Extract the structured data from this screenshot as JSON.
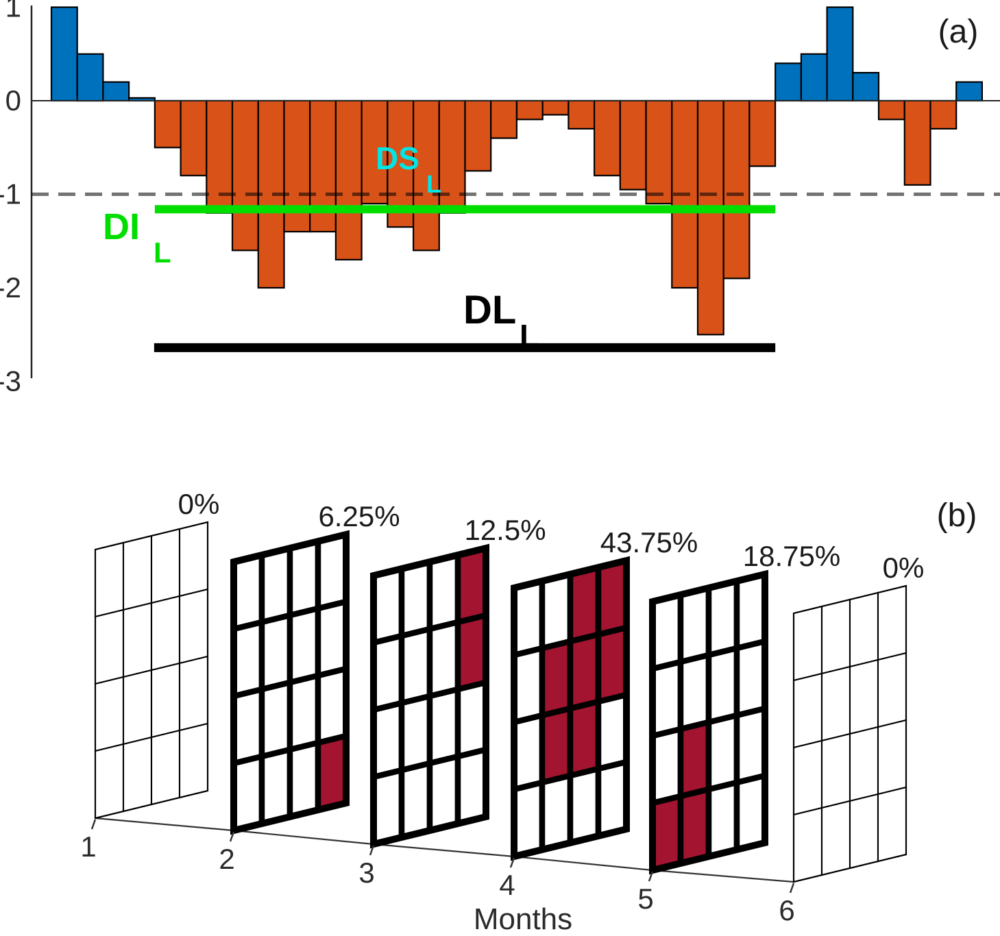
{
  "panel_a": {
    "tag": "(a)",
    "y_tick_labels": [
      "1",
      "0",
      "-1",
      "-2",
      "-3"
    ],
    "labels": {
      "ds": {
        "text": "DS",
        "sub": "L",
        "color": "#00E5E5"
      },
      "di": {
        "text": "DI",
        "sub": "L",
        "color": "#00DE00"
      },
      "dl": {
        "text": "DL",
        "sub": "L",
        "color": "#000000"
      }
    }
  },
  "panel_b": {
    "tag": "(b)",
    "xlabel": "Months",
    "month_tick_labels": [
      "1",
      "2",
      "3",
      "4",
      "5",
      "6"
    ],
    "percent_labels": [
      "0%",
      "6.25%",
      "12.5%",
      "43.75%",
      "18.75%",
      "0%"
    ]
  },
  "chart_data": [
    {
      "type": "bar",
      "panel": "a",
      "title": "",
      "xlabel": "",
      "ylabel": "",
      "x": [
        1,
        2,
        3,
        4,
        5,
        6,
        7,
        8,
        9,
        10,
        11,
        12,
        13,
        14,
        15,
        16,
        17,
        18,
        19,
        20,
        21,
        22,
        23,
        24,
        25,
        26,
        27,
        28,
        29,
        30,
        31,
        32,
        33,
        34,
        35,
        36
      ],
      "values": [
        1.0,
        0.5,
        0.2,
        0.03,
        -0.5,
        -0.8,
        -1.2,
        -1.6,
        -2.0,
        -1.4,
        -1.4,
        -1.7,
        -1.1,
        -1.35,
        -1.6,
        -1.2,
        -0.75,
        -0.4,
        -0.2,
        -0.15,
        -0.3,
        -0.8,
        -0.95,
        -1.1,
        -2.0,
        -2.5,
        -1.9,
        -0.7,
        0.4,
        0.5,
        1.0,
        0.3,
        -0.2,
        -0.9,
        -0.3,
        0.2
      ],
      "ylim": [
        -3,
        1
      ],
      "yticks": [
        1,
        0,
        -1,
        -2,
        -3
      ],
      "grid": false,
      "bar_colors": {
        "positive": "#0072BD",
        "negative": "#D95319"
      },
      "threshold_dashed_line": {
        "y": -1,
        "style": "dashed",
        "color": "rgba(0,0,0,0.55)"
      },
      "di_line": {
        "y": -1.16,
        "from_bar": 5,
        "to_bar": 28,
        "color": "#00DE00",
        "label": "DI_L"
      },
      "dl_line": {
        "y": -2.64,
        "from_bar": 5,
        "to_bar": 28,
        "color": "#000000",
        "label": "DL_L"
      },
      "ds_label": "DS_L",
      "drought_bar_range": [
        5,
        28
      ]
    },
    {
      "type": "heatmap",
      "panel": "b",
      "xlabel": "Months",
      "categories": [
        1,
        2,
        3,
        4,
        5,
        6
      ],
      "rows": 4,
      "cols": 4,
      "percent_values": [
        0,
        6.25,
        12.5,
        43.75,
        18.75,
        0
      ],
      "percent_labels": [
        "0%",
        "6.25%",
        "12.5%",
        "43.75%",
        "18.75%",
        "0%"
      ],
      "thick_border": [
        false,
        true,
        true,
        true,
        true,
        false
      ],
      "highlighted_cells": [
        [],
        [
          [
            4,
            4
          ]
        ],
        [
          [
            1,
            4
          ],
          [
            2,
            4
          ]
        ],
        [
          [
            1,
            3
          ],
          [
            1,
            4
          ],
          [
            2,
            2
          ],
          [
            2,
            3
          ],
          [
            2,
            4
          ],
          [
            3,
            2
          ],
          [
            3,
            3
          ]
        ],
        [
          [
            3,
            2
          ],
          [
            4,
            1
          ],
          [
            4,
            2
          ]
        ],
        []
      ],
      "highlight_color": "#A2142F",
      "cell_color": "#FFFFFF",
      "legend_position": "none"
    }
  ]
}
